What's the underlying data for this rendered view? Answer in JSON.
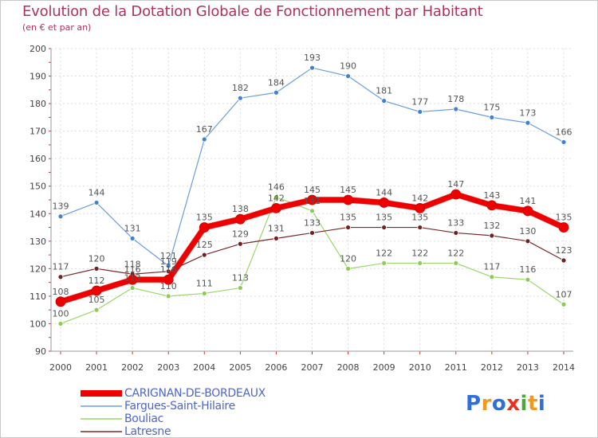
{
  "title": "Evolution de la Dotation Globale de Fonctionnement par Habitant",
  "subtitle": "(en € et par an)",
  "logo": {
    "letters": [
      "P",
      "r",
      "o",
      "x",
      "i",
      "t",
      "i"
    ],
    "colors": [
      "#2f6fd6",
      "#f09a1a",
      "#2f6fd6",
      "#e8321e",
      "#4aa83a",
      "#f09a1a",
      "#2f6fd6"
    ]
  },
  "chart_data": {
    "type": "line",
    "x": [
      "2000",
      "2001",
      "2002",
      "2003",
      "2004",
      "2005",
      "2006",
      "2007",
      "2008",
      "2009",
      "2010",
      "2011",
      "2012",
      "2013",
      "2014"
    ],
    "ylim": [
      90,
      200
    ],
    "yticks": [
      "90",
      "100",
      "110",
      "120",
      "130",
      "140",
      "150",
      "160",
      "170",
      "180",
      "190",
      "200"
    ],
    "grid": true,
    "series": [
      {
        "name": "Fargues-Saint-Hilaire",
        "color": "#6a9ee0",
        "marker": "#3f82d0",
        "width": 1.2,
        "values": [
          139,
          144,
          131,
          121,
          167,
          182,
          184,
          193,
          190,
          181,
          177,
          178,
          175,
          173,
          166
        ]
      },
      {
        "name": "Bouliac",
        "color": "#9ad66a",
        "marker": "#8ccc55",
        "width": 1.2,
        "values": [
          100,
          105,
          113,
          110,
          111,
          113,
          146,
          141,
          120,
          122,
          122,
          122,
          117,
          116,
          107
        ]
      },
      {
        "name": "Latresne",
        "color": "#7a2a2a",
        "marker": "#6e2222",
        "width": 1.2,
        "values": [
          117,
          120,
          118,
          119,
          125,
          129,
          131,
          133,
          135,
          135,
          135,
          133,
          132,
          130,
          123
        ]
      },
      {
        "name": "CARIGNAN-DE-BORDEAUX",
        "color": "#ee0000",
        "marker": "#ee0000",
        "width": 7,
        "values": [
          108,
          112,
          116,
          116,
          135,
          138,
          142,
          145,
          145,
          144,
          142,
          147,
          143,
          141,
          135
        ]
      }
    ],
    "data_labels": [
      {
        "series": "Fargues-Saint-Hilaire",
        "labels": [
          "139",
          "144",
          "131",
          "121",
          "167",
          "182",
          "184",
          "193",
          "190",
          "181",
          "177",
          "178",
          "175",
          "173",
          "166"
        ]
      },
      {
        "series": "Bouliac",
        "labels": [
          "100",
          "105",
          "113",
          "110",
          "111",
          "113",
          "146",
          "141",
          "120",
          "122",
          "122",
          "122",
          "117",
          "116",
          "107"
        ]
      },
      {
        "series": "Latresne",
        "labels": [
          "117",
          "120",
          "118",
          "119",
          "125",
          "129",
          "131",
          "133",
          "135",
          "135",
          "135",
          "133",
          "132",
          "130",
          "123"
        ]
      },
      {
        "series": "CARIGNAN-DE-BORDEAUX",
        "labels": [
          "108",
          "112",
          "116",
          "116",
          "135",
          "138",
          "142",
          "145",
          "145",
          "144",
          "142",
          "147",
          "143",
          "141",
          "135"
        ]
      }
    ],
    "legend": {
      "placement": "bottom-left",
      "items": [
        {
          "name": "CARIGNAN-DE-BORDEAUX",
          "color": "#ee0000",
          "thick": true
        },
        {
          "name": "Fargues-Saint-Hilaire",
          "color": "#6a9ee0",
          "thick": false
        },
        {
          "name": "Bouliac",
          "color": "#9ad66a",
          "thick": false
        },
        {
          "name": "Latresne",
          "color": "#7a2a2a",
          "thick": false
        }
      ]
    }
  }
}
